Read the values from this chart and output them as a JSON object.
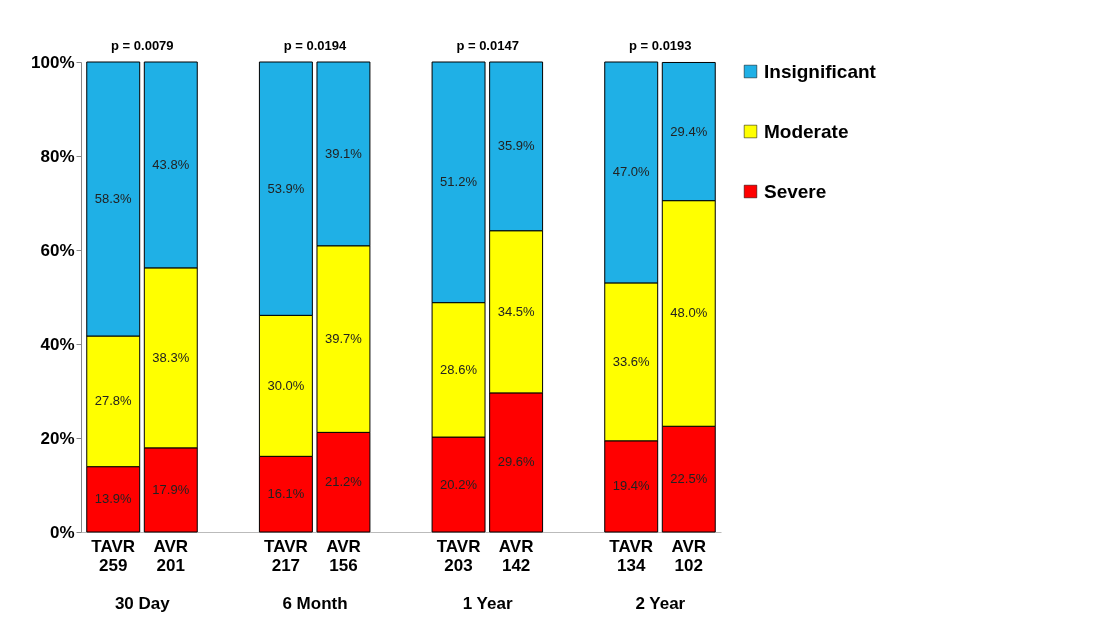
{
  "chart_data": {
    "type": "bar",
    "stacked": true,
    "legend": "right",
    "categories": [
      "TAVR\n259",
      "AVR\n201",
      null,
      "TAVR\n217",
      "AVR\n156",
      null,
      "TAVR\n203",
      "AVR\n142",
      null,
      "TAVR\n134",
      "AVR\n102"
    ],
    "ylim": [
      0,
      100
    ],
    "yticks": [
      {
        "value": 0,
        "label": "0%"
      },
      {
        "value": 20,
        "label": "20%"
      },
      {
        "value": 40,
        "label": "40%"
      },
      {
        "value": 60,
        "label": "60%"
      },
      {
        "value": 80,
        "label": "80%"
      },
      {
        "value": 100,
        "label": "100%"
      }
    ],
    "series": [
      {
        "name": "Severe",
        "color": "#ff0000",
        "values": [
          13.9,
          17.9,
          null,
          16.1,
          21.2,
          null,
          20.2,
          29.6,
          null,
          19.4,
          22.5
        ],
        "value_labels": [
          "13.9%",
          "17.9%",
          null,
          "16.1%",
          "21.2%",
          null,
          "20.2%",
          "29.6%",
          null,
          "19.4%",
          "22.5%"
        ]
      },
      {
        "name": "Moderate",
        "color": "#ffff00",
        "values": [
          27.8,
          38.3,
          null,
          30.0,
          39.7,
          null,
          28.6,
          34.5,
          null,
          33.6,
          48.0
        ],
        "value_labels": [
          "27.8%",
          "38.3%",
          null,
          "30.0%",
          "39.7%",
          null,
          "28.6%",
          "34.5%",
          null,
          "33.6%",
          "48.0%"
        ]
      },
      {
        "name": "Insignificant",
        "color": "#1fb0e6",
        "values": [
          58.3,
          43.8,
          null,
          53.9,
          39.1,
          null,
          51.2,
          35.9,
          null,
          47.0,
          29.4
        ],
        "value_labels": [
          "58.3%",
          "43.8%",
          null,
          "53.9%",
          "39.1%",
          null,
          "51.2%",
          "35.9%",
          null,
          "47.0%",
          "29.4%"
        ]
      }
    ],
    "annotations": [
      "p = 0.0079",
      "p = 0.0194",
      "p = 0.0147",
      "p = 0.0193",
      "30 Day",
      "6 Month",
      "1 Year",
      "2 Year"
    ]
  }
}
